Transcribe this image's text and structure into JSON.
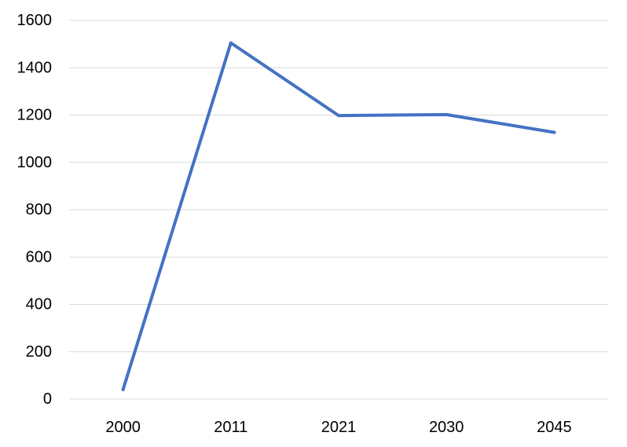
{
  "chart_data": {
    "type": "line",
    "title": "",
    "xlabel": "",
    "ylabel": "",
    "categories": [
      "2000",
      "2011",
      "2021",
      "2030",
      "2045"
    ],
    "series": [
      {
        "values": [
          40,
          1505,
          1198,
          1202,
          1127
        ],
        "color": "#4472c4"
      }
    ],
    "ylim": [
      0,
      1600
    ],
    "yticks": [
      0,
      200,
      400,
      600,
      800,
      1000,
      1200,
      1400,
      1600
    ],
    "grid": true,
    "legend": "none",
    "colors": {
      "line": "#4472c4",
      "grid": "#d9d9d9",
      "text": "#000000",
      "background": "#ffffff"
    }
  }
}
